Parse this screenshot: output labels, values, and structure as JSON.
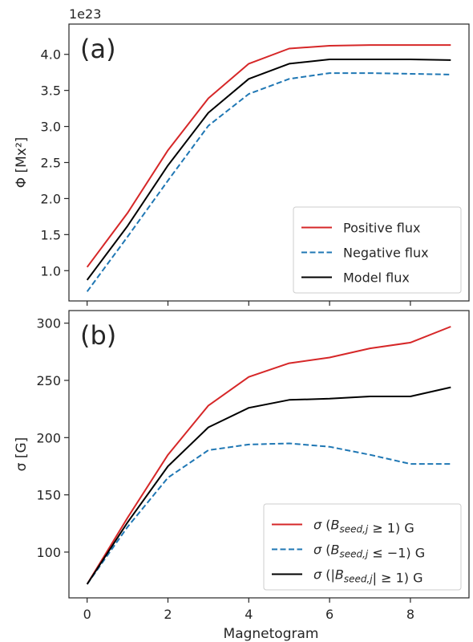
{
  "figure": {
    "xlabel": "Magnetogram"
  },
  "chart_data": [
    {
      "type": "line",
      "panel_label": "(a)",
      "title": "",
      "xlabel": "",
      "ylabel": "Φ [Mx²]",
      "y_offset_text": "1e23",
      "x": [
        0,
        1,
        2,
        3,
        4,
        5,
        6,
        7,
        8,
        9
      ],
      "xlim": [
        -0.45,
        9.45
      ],
      "ylim": [
        0.58,
        4.42
      ],
      "xticks": [
        0,
        2,
        4,
        6,
        8
      ],
      "yticks": [
        1.0,
        1.5,
        2.0,
        2.5,
        3.0,
        3.5,
        4.0
      ],
      "ytick_labels": [
        "1.0",
        "1.5",
        "2.0",
        "2.5",
        "3.0",
        "3.5",
        "4.0"
      ],
      "show_xtick_labels": false,
      "grid": false,
      "legend_position": "lower-right",
      "series": [
        {
          "name": "Positive flux",
          "color": "#d62728",
          "dash": "solid",
          "values": [
            1.05,
            1.8,
            2.67,
            3.39,
            3.87,
            4.08,
            4.12,
            4.13,
            4.13,
            4.13
          ]
        },
        {
          "name": "Negative flux",
          "color": "#1f77b4",
          "dash": "dashed",
          "values": [
            0.71,
            1.47,
            2.25,
            3.01,
            3.45,
            3.66,
            3.74,
            3.74,
            3.73,
            3.72
          ]
        },
        {
          "name": "Model flux",
          "color": "#000000",
          "dash": "solid",
          "values": [
            0.87,
            1.62,
            2.46,
            3.19,
            3.66,
            3.87,
            3.93,
            3.93,
            3.93,
            3.92
          ]
        }
      ]
    },
    {
      "type": "line",
      "panel_label": "(b)",
      "title": "",
      "xlabel": "Magnetogram",
      "ylabel": "σ [G]",
      "x": [
        0,
        1,
        2,
        3,
        4,
        5,
        6,
        7,
        8,
        9
      ],
      "xlim": [
        -0.45,
        9.45
      ],
      "ylim": [
        60,
        311
      ],
      "xticks": [
        0,
        2,
        4,
        6,
        8
      ],
      "xtick_labels": [
        "0",
        "2",
        "4",
        "6",
        "8"
      ],
      "yticks": [
        100,
        150,
        200,
        250,
        300
      ],
      "ytick_labels": [
        "100",
        "150",
        "200",
        "250",
        "300"
      ],
      "show_xtick_labels": true,
      "grid": false,
      "legend_position": "lower-right",
      "series": [
        {
          "name": "σ (B_seed,j ≥ 1) G",
          "color": "#d62728",
          "dash": "solid",
          "legend_parts": [
            {
              "t": "σ",
              "i": true
            },
            {
              "t": " ("
            },
            {
              "t": "B",
              "i": true
            },
            {
              "t": "seed,j",
              "i": true,
              "sub": true
            },
            {
              "t": " ≥ 1) G"
            }
          ],
          "values": [
            72,
            130,
            185,
            228,
            253,
            265,
            270,
            278,
            283,
            297
          ]
        },
        {
          "name": "σ (B_seed,j ≤ −1) G",
          "color": "#1f77b4",
          "dash": "dashed",
          "legend_parts": [
            {
              "t": "σ",
              "i": true
            },
            {
              "t": " ("
            },
            {
              "t": "B",
              "i": true
            },
            {
              "t": "seed,j",
              "i": true,
              "sub": true
            },
            {
              "t": " ≤ −1) G"
            }
          ],
          "values": [
            72,
            122,
            165,
            189,
            194,
            195,
            192,
            185,
            177,
            177
          ]
        },
        {
          "name": "σ (|B_seed,j| ≥ 1) G",
          "color": "#000000",
          "dash": "solid",
          "legend_parts": [
            {
              "t": "σ",
              "i": true
            },
            {
              "t": " (|"
            },
            {
              "t": "B",
              "i": true
            },
            {
              "t": "seed,j",
              "i": true,
              "sub": true
            },
            {
              "t": "| ≥ 1) G"
            }
          ],
          "values": [
            72,
            126,
            175,
            209,
            226,
            233,
            234,
            236,
            236,
            244
          ]
        }
      ]
    }
  ]
}
